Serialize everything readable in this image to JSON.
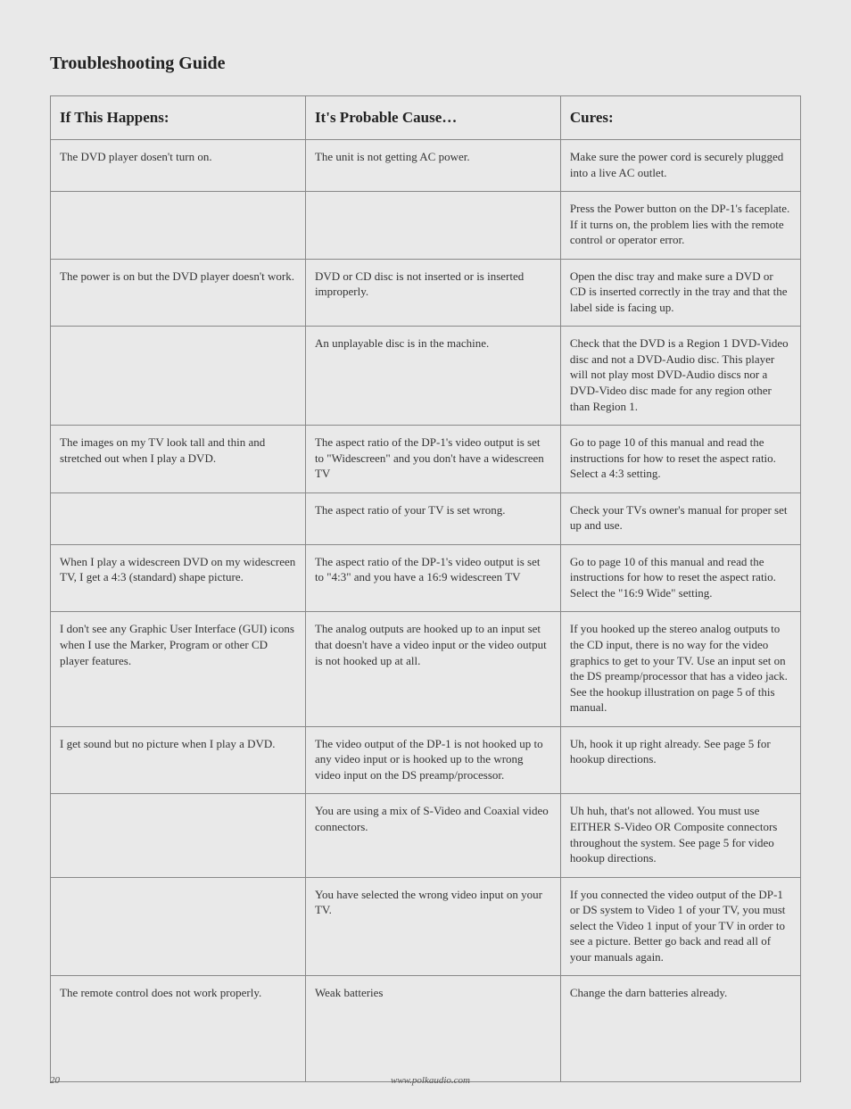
{
  "title": "Troubleshooting Guide",
  "headers": {
    "col1": "If This Happens:",
    "col2": "It's Probable Cause…",
    "col3": "Cures:"
  },
  "rows": [
    {
      "happens": "The DVD player dosen't turn on.",
      "cause": "The unit is not getting AC power.",
      "cure": "Make sure the power cord is securely plugged into a live AC outlet."
    },
    {
      "happens": "",
      "cause": "",
      "cure": "Press the Power button on the DP-1's faceplate. If it turns on, the problem lies with the remote control or operator error."
    },
    {
      "happens": "The power is on but the DVD player doesn't work.",
      "cause": "DVD or CD disc is not inserted or is inserted improperly.",
      "cure": "Open the disc tray and make sure a DVD or CD is inserted correctly in the tray and that the label side is facing up."
    },
    {
      "happens": "",
      "cause": "An unplayable disc is in the machine.",
      "cure": "Check that the DVD is a Region 1 DVD-Video disc and not a DVD-Audio disc. This player will not play most DVD-Audio discs nor a DVD-Video disc made for any region other than Region 1."
    },
    {
      "happens": "The images on my TV look tall and thin and stretched out when I play a DVD.",
      "cause": "The aspect ratio of the DP-1's video output is set to \"Widescreen\" and you don't have a widescreen TV",
      "cure": "Go to page 10 of this manual and read the instructions for how to reset the aspect ratio. Select a 4:3 setting."
    },
    {
      "happens": "",
      "cause": "The aspect ratio of your TV is set wrong.",
      "cure": "Check your TVs owner's manual for proper set up and use."
    },
    {
      "happens": "When I play a widescreen DVD on my widescreen TV, I get a 4:3 (standard) shape picture.",
      "cause": "The aspect ratio of the DP-1's video output is set to \"4:3\" and you have a 16:9 widescreen TV",
      "cure": "Go to page 10 of this manual and read the instructions for how to reset the aspect ratio. Select the \"16:9 Wide\" setting."
    },
    {
      "happens": "I don't see any Graphic User Interface (GUI) icons when I use the Marker, Program or other CD player features.",
      "cause": "The analog outputs are hooked up to an input set that doesn't have a video input or the video output is not hooked up at all.",
      "cure": "If you hooked up the stereo analog outputs to the CD input, there is no way for the video graphics to get to your TV. Use an input set on the DS preamp/processor that has a video jack. See the hookup illustration on page 5 of this manual."
    },
    {
      "happens": "I get sound but no picture when I play a DVD.",
      "cause": "The video output of the DP-1 is not hooked up to any video input or is hooked up to the wrong video input on the DS preamp/processor.",
      "cure": "Uh, hook it up right already. See page 5 for hookup directions."
    },
    {
      "happens": "",
      "cause": "You are using a mix of S-Video and Coaxial video connectors.",
      "cure": "Uh huh, that's not allowed. You must use EITHER S-Video OR Composite connectors throughout the system. See page 5 for video hookup directions."
    },
    {
      "happens": "",
      "cause": "You have selected the wrong video input on your TV.",
      "cure": "If you connected the video output of the DP-1 or DS system to Video 1 of your TV, you must select the Video 1 input of your TV in order to see a picture. Better go back and read all of your manuals again."
    },
    {
      "happens": "The remote control does not work properly.",
      "cause": "Weak batteries",
      "cure": "Change the darn batteries already."
    }
  ],
  "lastRowExtraHeight": 90,
  "footer": {
    "page": "20",
    "url": "www.polkaudio.com"
  }
}
